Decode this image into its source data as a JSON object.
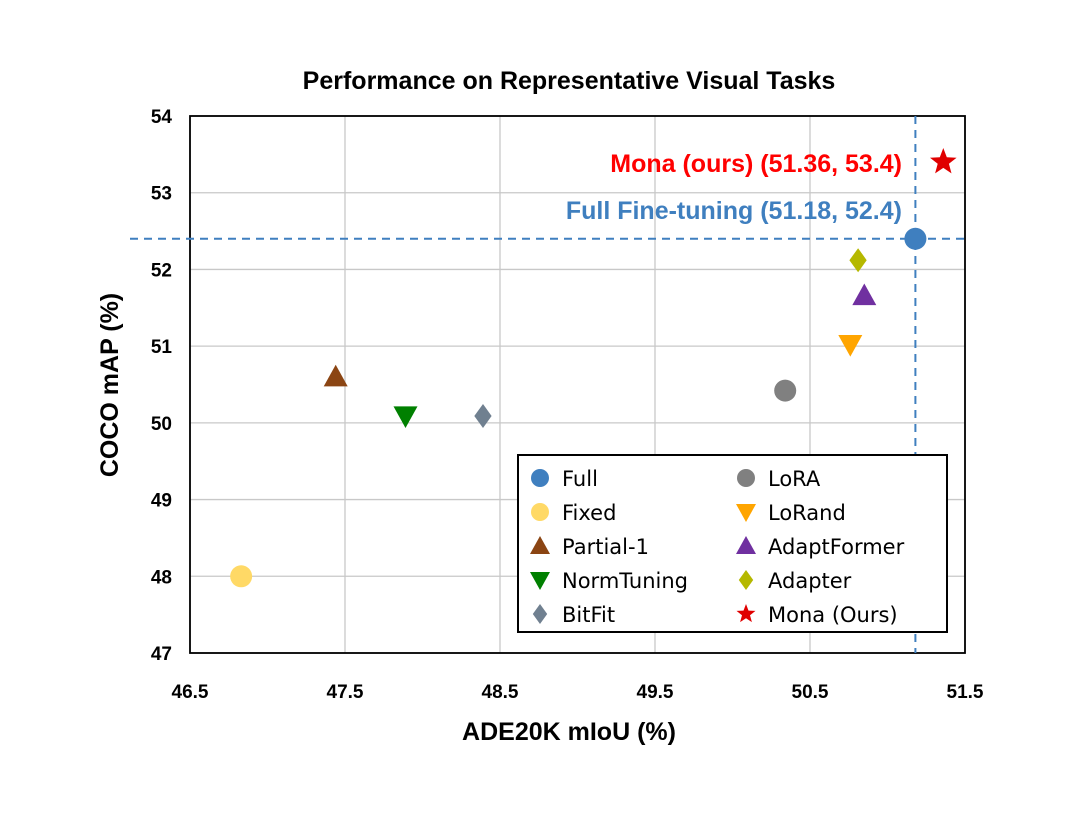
{
  "chart_data": {
    "type": "scatter",
    "title": "Performance on Representative Visual Tasks",
    "xlabel": "ADE20K mIoU (%)",
    "ylabel": "COCO mAP (%)",
    "xlim": [
      46.5,
      51.5
    ],
    "ylim": [
      47,
      54
    ],
    "xticks": [
      "46.5",
      "47.5",
      "48.5",
      "49.5",
      "50.5",
      "51.5"
    ],
    "yticks": [
      "47",
      "48",
      "49",
      "50",
      "51",
      "52",
      "53",
      "54"
    ],
    "grid": true,
    "legend_position": "bottom-right",
    "series": [
      {
        "name": "Full",
        "marker": "circle",
        "color": "#3f7fbf",
        "x": 51.18,
        "y": 52.4
      },
      {
        "name": "LoRA",
        "marker": "circle",
        "color": "#808080",
        "x": 50.34,
        "y": 50.42
      },
      {
        "name": "Fixed",
        "marker": "circle",
        "color": "#ffd966",
        "x": 46.83,
        "y": 48.0
      },
      {
        "name": "LoRand",
        "marker": "triangle-down",
        "color": "#ffa500",
        "x": 50.76,
        "y": 51.02
      },
      {
        "name": "Partial-1",
        "marker": "triangle-up",
        "color": "#8b4513",
        "x": 47.44,
        "y": 50.6
      },
      {
        "name": "AdaptFormer",
        "marker": "triangle-up",
        "color": "#7030a0",
        "x": 50.85,
        "y": 51.66
      },
      {
        "name": "NormTuning",
        "marker": "triangle-down",
        "color": "#008000",
        "x": 47.89,
        "y": 50.09
      },
      {
        "name": "Adapter",
        "marker": "diamond",
        "color": "#b5b800",
        "x": 50.81,
        "y": 52.12
      },
      {
        "name": "BitFit",
        "marker": "diamond",
        "color": "#708090",
        "x": 48.39,
        "y": 50.09
      },
      {
        "name": "Mona (Ours)",
        "marker": "star",
        "color": "#e00000",
        "x": 51.36,
        "y": 53.4
      }
    ],
    "reference_lines": {
      "x": 51.18,
      "y": 52.4,
      "color": "#3f7fbf",
      "style": "dashed"
    },
    "annotations": [
      {
        "text": "Mona (ours) (51.36, 53.4)",
        "color": "#ff0000"
      },
      {
        "text": "Full Fine-tuning (51.18, 52.4)",
        "color": "#3f7fbf"
      }
    ]
  }
}
